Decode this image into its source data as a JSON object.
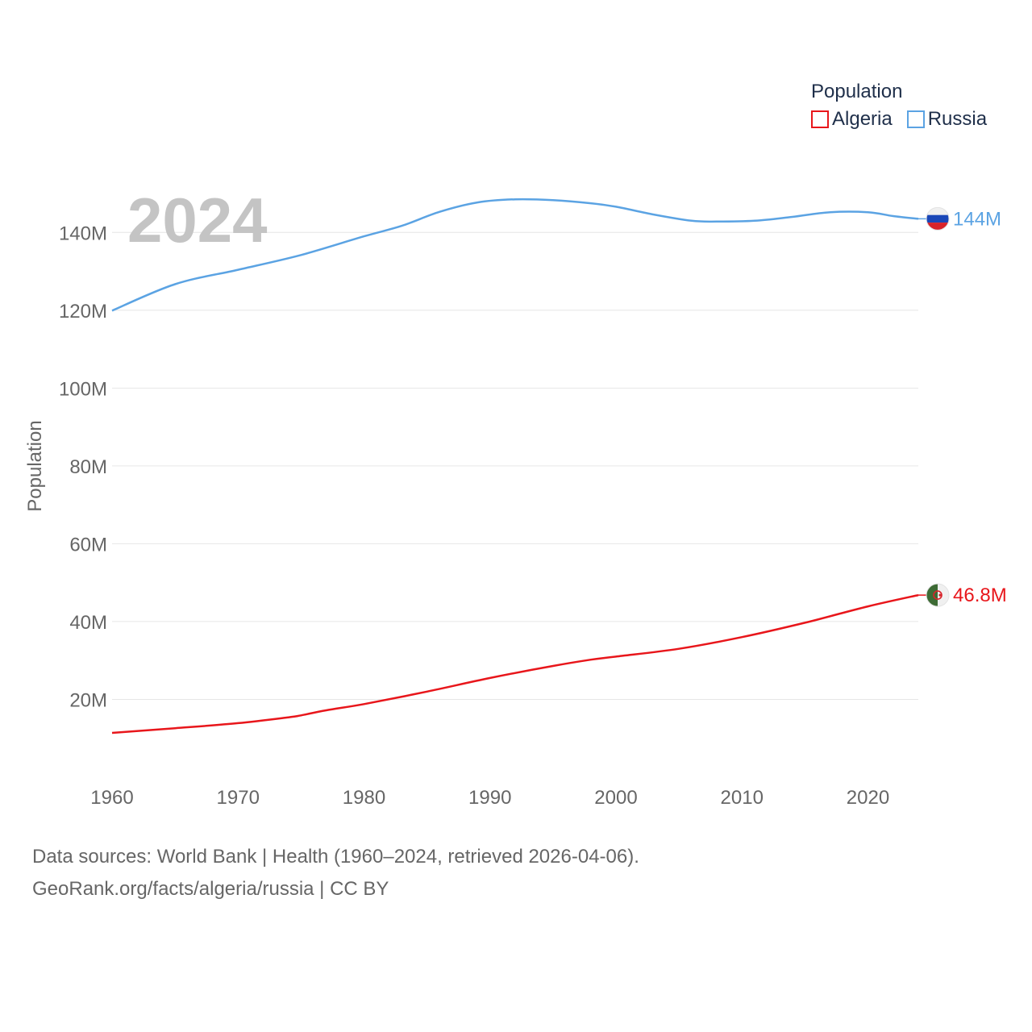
{
  "chart_data": {
    "type": "line",
    "ylabel": "Population",
    "xlabel": "",
    "current_year_label": "2024",
    "x_ticks": [
      "1960",
      "1970",
      "1980",
      "1990",
      "2000",
      "2010",
      "2020"
    ],
    "x_tick_values": [
      1960,
      1970,
      1980,
      1990,
      2000,
      2010,
      2020
    ],
    "y_ticks": [
      "20M",
      "40M",
      "60M",
      "80M",
      "100M",
      "120M",
      "140M"
    ],
    "y_tick_values": [
      20,
      40,
      60,
      80,
      100,
      120,
      140
    ],
    "xlim": [
      1960,
      2024
    ],
    "ylim": [
      0,
      150
    ],
    "y_unit": "millions",
    "legend": {
      "title": "Population",
      "placement": "top-right"
    },
    "series": [
      {
        "name": "Algeria",
        "color": "#e8161b",
        "end_label": "46.8M",
        "flag_icon": "algeria-flag-icon",
        "points": [
          [
            1960,
            11.4
          ],
          [
            1965,
            12.6
          ],
          [
            1970,
            13.9
          ],
          [
            1974,
            15.4
          ],
          [
            1975,
            15.9
          ],
          [
            1977,
            17.2
          ],
          [
            1980,
            18.8
          ],
          [
            1985,
            22.0
          ],
          [
            1990,
            25.5
          ],
          [
            1995,
            28.6
          ],
          [
            1998,
            30.2
          ],
          [
            2000,
            31.0
          ],
          [
            2005,
            33.0
          ],
          [
            2010,
            36.0
          ],
          [
            2015,
            39.7
          ],
          [
            2020,
            43.9
          ],
          [
            2024,
            46.8
          ]
        ]
      },
      {
        "name": "Russia",
        "color": "#5ba3e3",
        "end_label": "144M",
        "flag_icon": "russia-flag-icon",
        "points": [
          [
            1960,
            119.9
          ],
          [
            1965,
            126.7
          ],
          [
            1970,
            130.4
          ],
          [
            1975,
            134.2
          ],
          [
            1980,
            139.0
          ],
          [
            1983,
            141.7
          ],
          [
            1986,
            145.3
          ],
          [
            1989,
            147.7
          ],
          [
            1992,
            148.5
          ],
          [
            1995,
            148.3
          ],
          [
            1998,
            147.5
          ],
          [
            2000,
            146.6
          ],
          [
            2003,
            144.6
          ],
          [
            2006,
            143.0
          ],
          [
            2008,
            142.8
          ],
          [
            2011,
            143.0
          ],
          [
            2014,
            144.0
          ],
          [
            2017,
            145.2
          ],
          [
            2020,
            145.2
          ],
          [
            2022,
            144.2
          ],
          [
            2024,
            143.5
          ]
        ]
      }
    ]
  },
  "footer": {
    "line1": "Data sources: World Bank | Health (1960–2024, retrieved 2026-04-06).",
    "line2": "GeoRank.org/facts/algeria/russia | CC BY"
  }
}
